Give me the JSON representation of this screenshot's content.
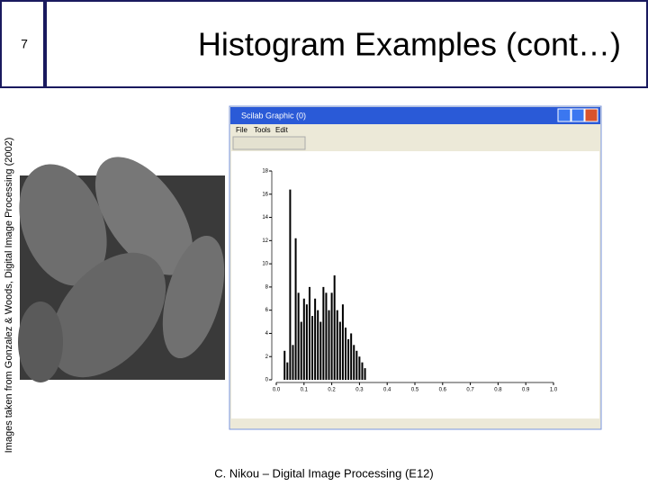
{
  "slide_number": "7",
  "title": "Histogram Examples (cont…)",
  "side_note": "Images taken from Gonzalez & Woods, Digital Image Processing (2002)",
  "footer": "C. Nikou – Digital Image Processing (E12)",
  "window": {
    "title": "Scilab Graphic (0)",
    "menu": [
      "File",
      "Tools",
      "Edit"
    ]
  },
  "chart_data": {
    "type": "bar",
    "color": "#000000",
    "x": [
      0.03,
      0.04,
      0.05,
      0.06,
      0.07,
      0.08,
      0.09,
      0.1,
      0.11,
      0.12,
      0.13,
      0.14,
      0.15,
      0.16,
      0.17,
      0.18,
      0.19,
      0.2,
      0.21,
      0.22,
      0.23,
      0.24,
      0.25,
      0.26,
      0.27,
      0.28,
      0.29,
      0.3,
      0.31,
      0.32
    ],
    "values": [
      2.5,
      1.5,
      16.4,
      3,
      12.2,
      7.5,
      5,
      7,
      6.5,
      8,
      5.5,
      7,
      6,
      5,
      8,
      7.5,
      6,
      7.5,
      9,
      6,
      5,
      6.5,
      4.5,
      3.5,
      4,
      3,
      2.5,
      2,
      1.5,
      1
    ],
    "xlim": [
      0,
      1
    ],
    "xticks": [
      {
        "value": 0,
        "label": "0.0"
      },
      0.1,
      0.2,
      0.3,
      0.4,
      0.5,
      0.6,
      0.7,
      0.8,
      0.9,
      {
        "value": 1,
        "label": "1.0"
      }
    ],
    "ylim": [
      0,
      18
    ],
    "yticks": [
      0,
      2,
      4,
      6,
      8,
      10,
      12,
      14,
      16,
      18
    ]
  }
}
